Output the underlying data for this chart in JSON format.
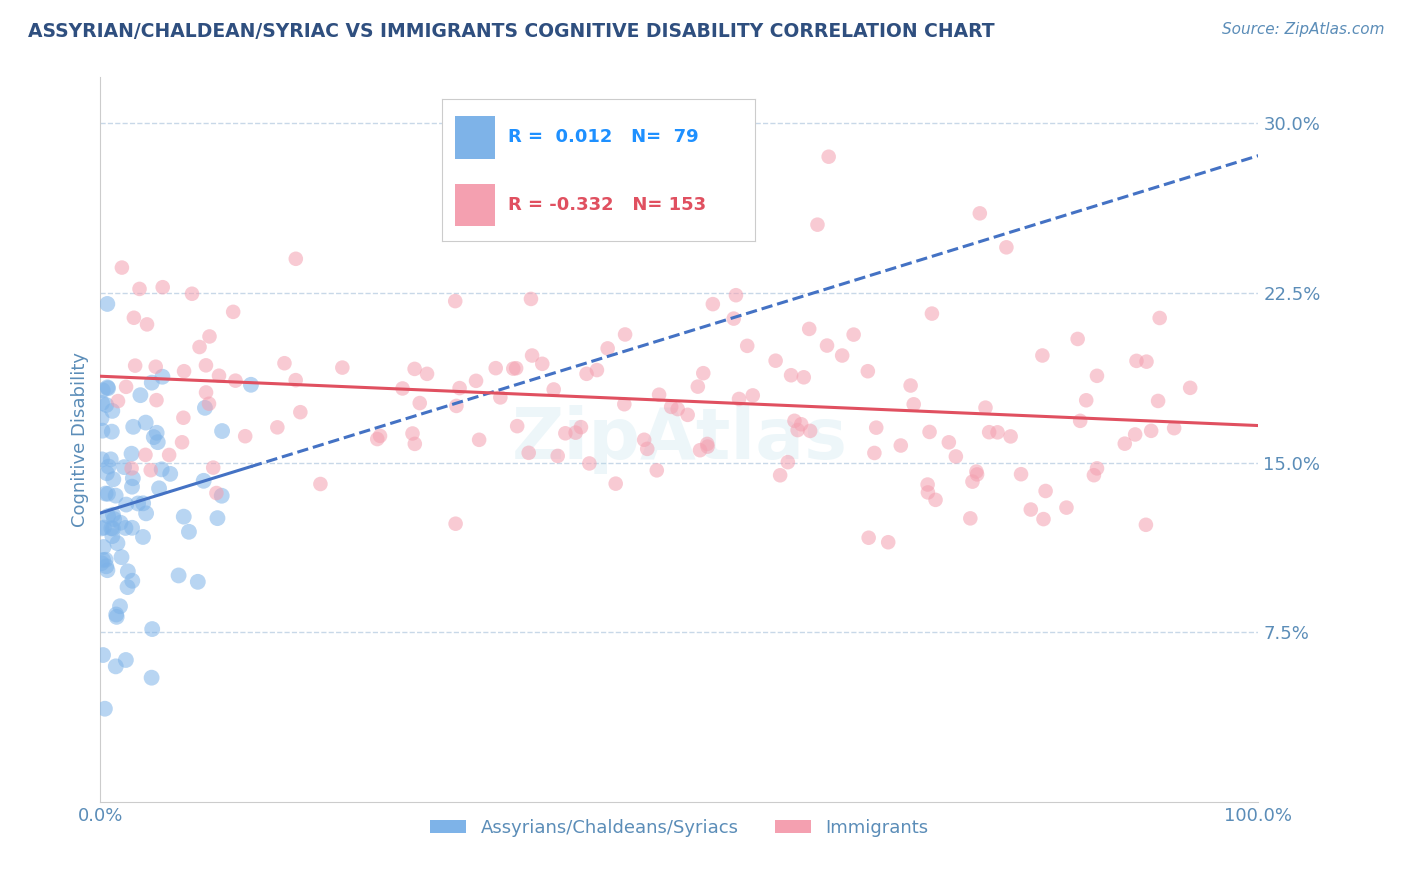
{
  "title": "ASSYRIAN/CHALDEAN/SYRIAC VS IMMIGRANTS COGNITIVE DISABILITY CORRELATION CHART",
  "source": "Source: ZipAtlas.com",
  "ylabel": "Cognitive Disability",
  "legend_label_blue": "Assyrians/Chaldeans/Syriacs",
  "legend_label_pink": "Immigrants",
  "r_blue": 0.012,
  "n_blue": 79,
  "r_pink": -0.332,
  "n_pink": 153,
  "xlim": [
    0.0,
    1.0
  ],
  "ylim": [
    0.0,
    0.32
  ],
  "yticks": [
    0.075,
    0.15,
    0.225,
    0.3
  ],
  "ytick_labels": [
    "7.5%",
    "15.0%",
    "22.5%",
    "30.0%"
  ],
  "xticks": [
    0.0,
    1.0
  ],
  "xtick_labels": [
    "0.0%",
    "100.0%"
  ],
  "color_blue": "#7EB3E8",
  "color_pink": "#F4A0B0",
  "trendline_blue": "#4472C4",
  "trendline_pink": "#E05060",
  "background_color": "#FFFFFF",
  "title_color": "#2F4F7F",
  "tick_color": "#5B8DB8",
  "grid_color": "#C8D8E8",
  "legend_r_color_blue": "#1E90FF",
  "legend_r_color_pink": "#E05060",
  "watermark": "ZipAtlas",
  "seed": 42
}
